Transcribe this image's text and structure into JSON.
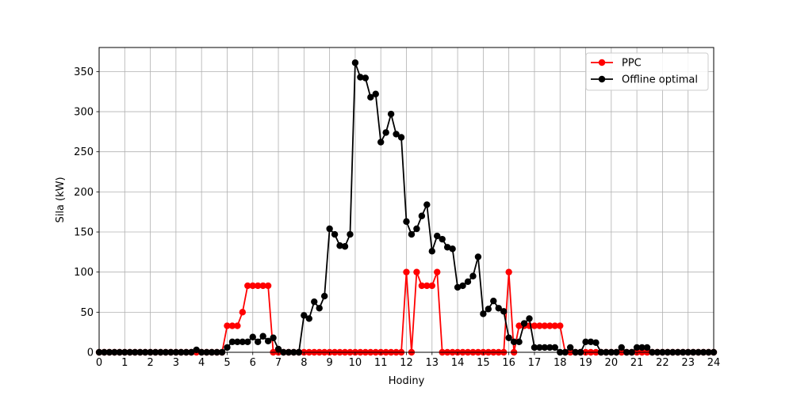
{
  "chart_data": {
    "type": "line",
    "title": "",
    "xlabel": "Hodiny",
    "ylabel": "Sila (kW)",
    "xlim": [
      0,
      24
    ],
    "ylim": [
      0,
      380
    ],
    "xticks": [
      "0",
      "1",
      "2",
      "3",
      "4",
      "5",
      "6",
      "7",
      "8",
      "9",
      "10",
      "11",
      "12",
      "13",
      "14",
      "15",
      "16",
      "17",
      "18",
      "19",
      "20",
      "21",
      "22",
      "23",
      "24"
    ],
    "yticks": [
      "0",
      "50",
      "100",
      "150",
      "200",
      "250",
      "300",
      "350"
    ],
    "grid": true,
    "legend_position": "top-right",
    "x": [
      0,
      0.2,
      0.4,
      0.6,
      0.8,
      1,
      1.2,
      1.4,
      1.6,
      1.8,
      2,
      2.2,
      2.4,
      2.6,
      2.8,
      3,
      3.2,
      3.4,
      3.6,
      3.8,
      4,
      4.2,
      4.4,
      4.6,
      4.8,
      5,
      5.2,
      5.4,
      5.6,
      5.8,
      6,
      6.2,
      6.4,
      6.6,
      6.8,
      7,
      7.2,
      7.4,
      7.6,
      7.8,
      8,
      8.2,
      8.4,
      8.6,
      8.8,
      9,
      9.2,
      9.4,
      9.6,
      9.8,
      10,
      10.2,
      10.4,
      10.6,
      10.8,
      11,
      11.2,
      11.4,
      11.6,
      11.8,
      12,
      12.2,
      12.4,
      12.6,
      12.8,
      13,
      13.2,
      13.4,
      13.6,
      13.8,
      14,
      14.2,
      14.4,
      14.6,
      14.8,
      15,
      15.2,
      15.4,
      15.6,
      15.8,
      16,
      16.2,
      16.4,
      16.6,
      16.8,
      17,
      17.2,
      17.4,
      17.6,
      17.8,
      18,
      18.2,
      18.4,
      18.6,
      18.8,
      19,
      19.2,
      19.4,
      19.6,
      19.8,
      20,
      20.2,
      20.4,
      20.6,
      20.8,
      21,
      21.2,
      21.4,
      21.6,
      21.8,
      22,
      22.2,
      22.4,
      22.6,
      22.8,
      23,
      23.2,
      23.4,
      23.6,
      23.8,
      24
    ],
    "series": [
      {
        "name": "PPC",
        "color": "#ff0000",
        "values": [
          0,
          0,
          0,
          0,
          0,
          0,
          0,
          0,
          0,
          0,
          0,
          0,
          0,
          0,
          0,
          0,
          0,
          0,
          0,
          0,
          0,
          0,
          0,
          0,
          0,
          33,
          33,
          33,
          50,
          83,
          83,
          83,
          83,
          83,
          0,
          0,
          0,
          0,
          0,
          0,
          0,
          0,
          0,
          0,
          0,
          0,
          0,
          0,
          0,
          0,
          0,
          0,
          0,
          0,
          0,
          0,
          0,
          0,
          0,
          0,
          100,
          0,
          100,
          83,
          83,
          83,
          100,
          0,
          0,
          0,
          0,
          0,
          0,
          0,
          0,
          0,
          0,
          0,
          0,
          0,
          100,
          0,
          33,
          33,
          33,
          33,
          33,
          33,
          33,
          33,
          33,
          0,
          0,
          0,
          0,
          0,
          0,
          0,
          0,
          0,
          0,
          0,
          0,
          0,
          0,
          0,
          0,
          0,
          0,
          0,
          0,
          0,
          0,
          0,
          0,
          0,
          0,
          0,
          0,
          0,
          0
        ]
      },
      {
        "name": "Offline optimal",
        "color": "#000000",
        "values": [
          0,
          0,
          0,
          0,
          0,
          0,
          0,
          0,
          0,
          0,
          0,
          0,
          0,
          0,
          0,
          0,
          0,
          0,
          0,
          3,
          0,
          0,
          0,
          0,
          0,
          6,
          13,
          13,
          13,
          13,
          19,
          13,
          20,
          14,
          18,
          4,
          0,
          0,
          0,
          0,
          46,
          42,
          63,
          55,
          70,
          154,
          147,
          133,
          132,
          147,
          361,
          343,
          342,
          318,
          322,
          262,
          274,
          297,
          272,
          268,
          163,
          147,
          154,
          170,
          184,
          126,
          145,
          141,
          131,
          129,
          81,
          83,
          88,
          95,
          119,
          48,
          54,
          64,
          55,
          51,
          18,
          13,
          13,
          36,
          42,
          6,
          6,
          6,
          6,
          6,
          0,
          0,
          6,
          0,
          0,
          13,
          13,
          12,
          0,
          0,
          0,
          0,
          6,
          0,
          0,
          6,
          6,
          6,
          0,
          0,
          0,
          0,
          0,
          0,
          0,
          0,
          0,
          0,
          0,
          0,
          0
        ]
      }
    ]
  }
}
